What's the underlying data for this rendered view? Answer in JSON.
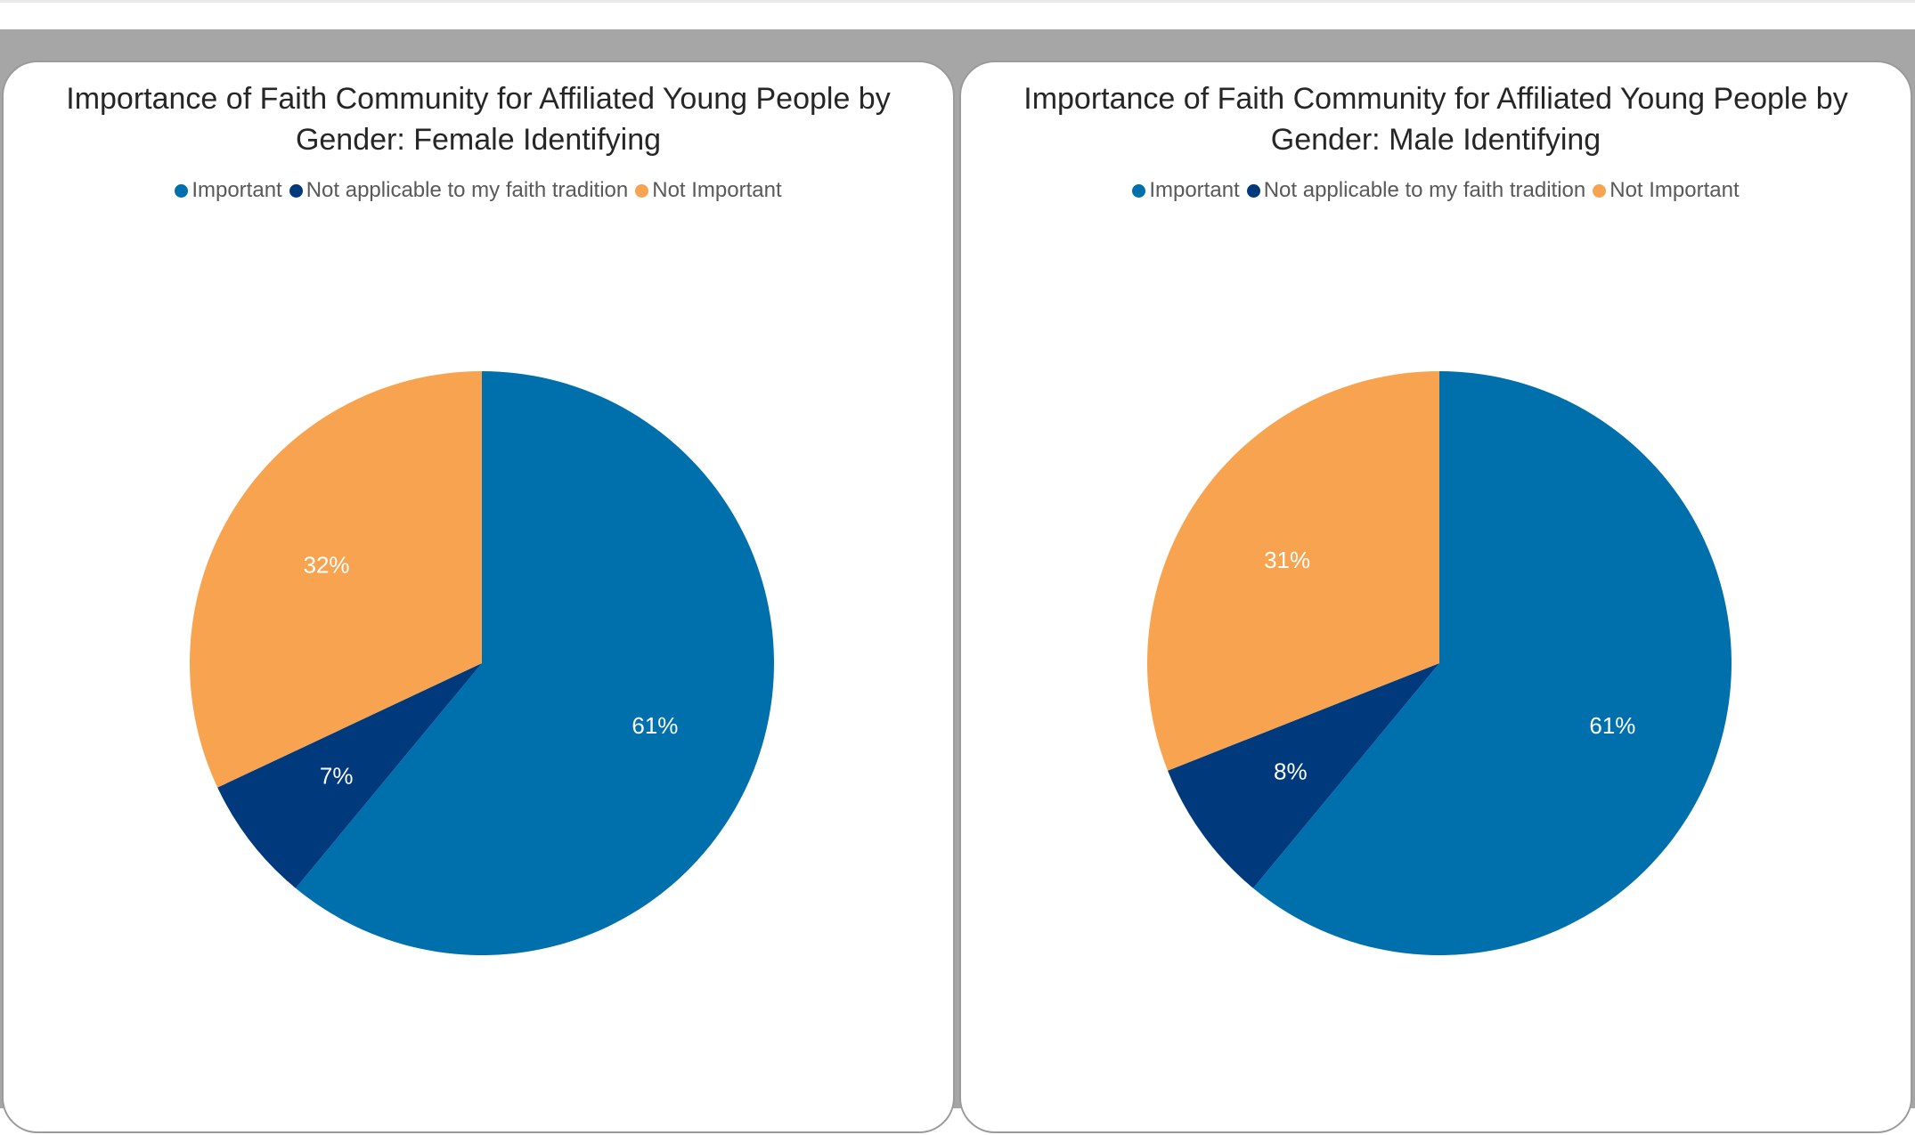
{
  "colors": {
    "important": "#0070ad",
    "not_applicable": "#003a7d",
    "not_important": "#f8a34f"
  },
  "chart_data": [
    {
      "type": "pie",
      "title": "Importance of Faith Community for Affiliated Young People by Gender: Female Identifying",
      "categories": [
        "Important",
        "Not applicable to my faith tradition",
        "Not Important"
      ],
      "values": [
        61,
        7,
        32
      ],
      "labels": [
        "61%",
        "7%",
        "32%"
      ],
      "legend_position": "top",
      "start_angle": "12 o'clock, clockwise"
    },
    {
      "type": "pie",
      "title": "Importance of Faith Community for Affiliated Young People by Gender: Male Identifying",
      "categories": [
        "Important",
        "Not applicable to my faith tradition",
        "Not Important"
      ],
      "values": [
        61,
        8,
        31
      ],
      "labels": [
        "61%",
        "8%",
        "31%"
      ],
      "legend_position": "top",
      "start_angle": "12 o'clock, clockwise"
    }
  ]
}
